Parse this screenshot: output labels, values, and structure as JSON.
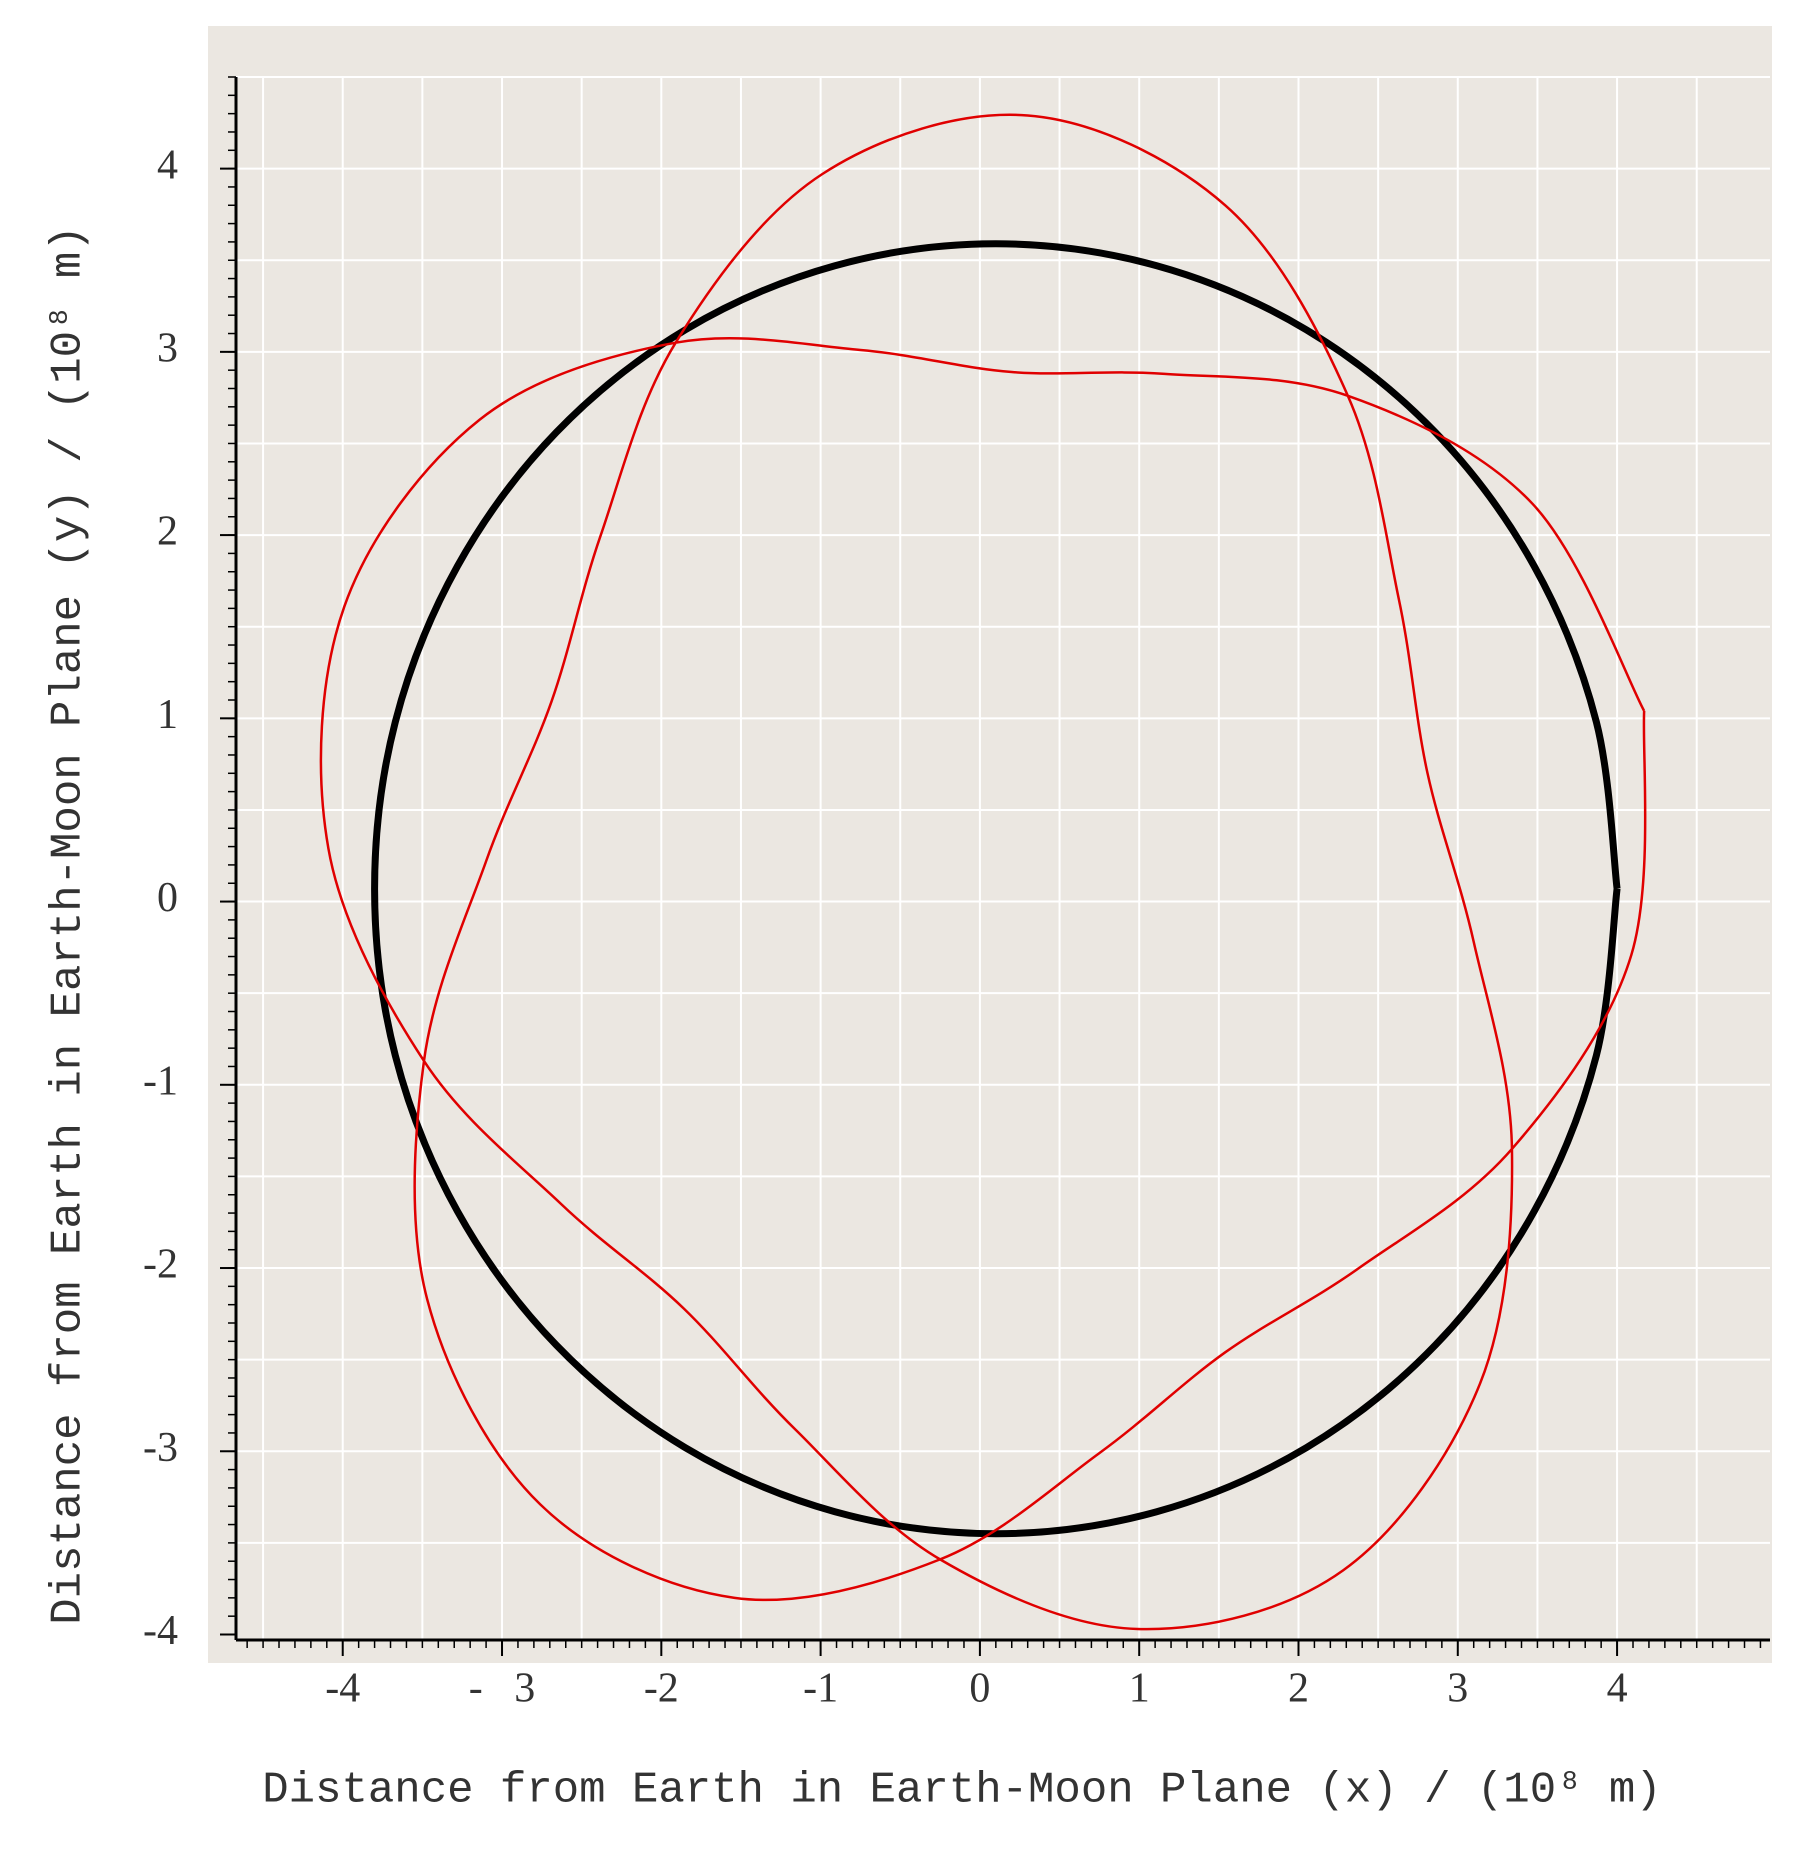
{
  "chart_data": {
    "type": "line",
    "x_label": "Distance from Earth in Earth-Moon Plane (x) / (10⁸ m)",
    "y_label": "Distance from Earth in Earth-Moon Plane (y) / (10⁸ m)",
    "xlim": [
      -4.67,
      4.96
    ],
    "ylim": [
      -4.03,
      4.5
    ],
    "xticks": [
      -4,
      {
        "value": -3,
        "label": "-   3"
      },
      -2,
      -1,
      0,
      1,
      2,
      3,
      4
    ],
    "yticks": [
      -4,
      -3,
      -2,
      -1,
      0,
      1,
      2,
      3,
      4
    ],
    "xgrid": [
      -4.5,
      -4,
      -3.5,
      -3,
      -2.5,
      -2,
      -1.5,
      -1,
      -0.5,
      0,
      0.5,
      1,
      1.5,
      2,
      2.5,
      3,
      3.5,
      4,
      4.5
    ],
    "ygrid": [
      -3.5,
      -3,
      -2.5,
      -2,
      -1.5,
      -1,
      -0.5,
      0,
      0.5,
      1,
      1.5,
      2,
      2.5,
      3,
      3.5,
      4,
      4.5
    ],
    "grid": true,
    "background": "#ebe7e1",
    "series": [
      {
        "color": "#000000",
        "x": [
          4.0,
          3.87,
          3.48,
          2.86,
          2.05,
          1.11,
          0.1,
          -0.91,
          -1.85,
          -2.66,
          -3.28,
          -3.67,
          -3.8,
          -3.67,
          -3.28,
          -2.66,
          -1.85,
          -0.91,
          0.1,
          1.11,
          2.05,
          2.86,
          3.48,
          3.87,
          4.0
        ],
        "values": [
          0.07,
          0.98,
          1.83,
          2.56,
          3.12,
          3.47,
          3.59,
          3.47,
          3.12,
          2.56,
          1.83,
          0.98,
          0.07,
          -0.84,
          -1.69,
          -2.42,
          -2.98,
          -3.33,
          -3.45,
          -3.33,
          -2.98,
          -2.42,
          -1.69,
          -0.84,
          0.07
        ]
      },
      {
        "color": "#e00000",
        "x": [
          4.17,
          3.47,
          2.31,
          1.16,
          0.2,
          -0.75,
          -1.91,
          -3.14,
          -3.99,
          -4.09,
          -3.49,
          -2.63,
          -1.86,
          -1.16,
          -0.25,
          0.99,
          2.28,
          3.14,
          3.34,
          3.1,
          2.81,
          2.63,
          2.31,
          1.54,
          0.3,
          -0.99,
          -1.91,
          -2.38,
          -2.69,
          -3.1,
          -3.49,
          -3.47,
          -2.76,
          -1.54,
          -0.25,
          0.75,
          1.54,
          2.38,
          3.34,
          4.09,
          4.17
        ],
        "values": [
          1.04,
          2.17,
          2.76,
          2.88,
          2.89,
          3.01,
          3.05,
          2.63,
          1.61,
          0.29,
          -0.87,
          -1.65,
          -2.22,
          -2.88,
          -3.59,
          -3.97,
          -3.65,
          -2.63,
          -1.35,
          -0.22,
          0.7,
          1.65,
          2.76,
          3.8,
          4.29,
          3.97,
          3.05,
          2.0,
          1.09,
          0.22,
          -0.87,
          -2.17,
          -3.29,
          -3.8,
          -3.59,
          -3.01,
          -2.46,
          -2.0,
          -1.35,
          -0.29,
          1.04
        ]
      }
    ]
  }
}
